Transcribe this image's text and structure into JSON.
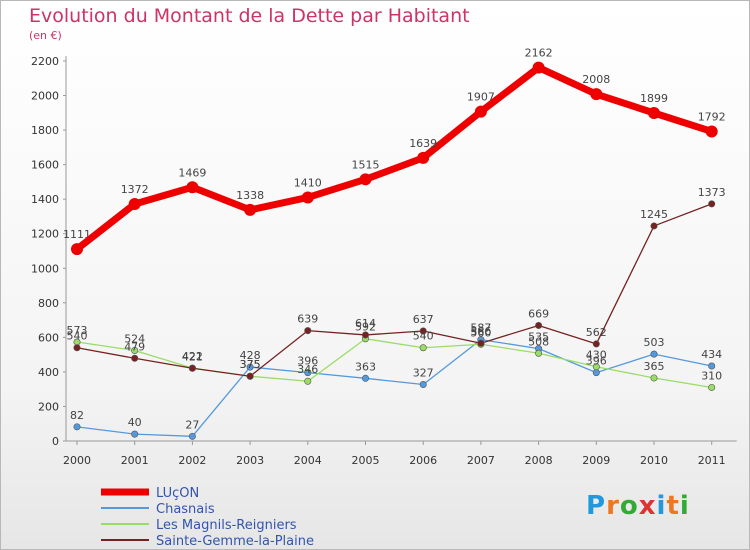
{
  "chart_data": {
    "type": "line",
    "title": "Evolution du Montant de la Dette par Habitant",
    "subtitle": "(en €)",
    "xlabel": "",
    "ylabel": "",
    "categories": [
      "2000",
      "2001",
      "2002",
      "2003",
      "2004",
      "2005",
      "2006",
      "2007",
      "2008",
      "2009",
      "2010",
      "2011"
    ],
    "ylim": [
      0,
      2200
    ],
    "yticks": [
      0,
      200,
      400,
      600,
      800,
      1000,
      1200,
      1400,
      1600,
      1800,
      2000,
      2200
    ],
    "grid": false,
    "legend_position": "bottom-left",
    "series": [
      {
        "name": "LUçON",
        "color": "#ee0000",
        "values": [
          1111,
          1372,
          1469,
          1338,
          1410,
          1515,
          1639,
          1907,
          2162,
          2008,
          1899,
          1792
        ]
      },
      {
        "name": "Chasnais",
        "color": "#5599dd",
        "values": [
          82,
          40,
          27,
          428,
          396,
          363,
          327,
          587,
          535,
          396,
          503,
          434
        ]
      },
      {
        "name": "Les Magnils-Reigniers",
        "color": "#99dd66",
        "values": [
          573,
          524,
          422,
          375,
          346,
          592,
          540,
          560,
          508,
          430,
          365,
          310
        ]
      },
      {
        "name": "Sainte-Gemme-la-Plaine",
        "color": "#772222",
        "values": [
          540,
          479,
          421,
          375,
          639,
          614,
          637,
          566,
          669,
          562,
          1245,
          1373
        ]
      }
    ]
  },
  "logo": {
    "text": "Proxiti",
    "letters": [
      "P",
      "r",
      "o",
      "x",
      "i",
      "t",
      "i"
    ],
    "colors": [
      "#2299dd",
      "#ee7722",
      "#33aa33",
      "#dd3333",
      "#2299dd",
      "#ee7722",
      "#33aa33"
    ]
  }
}
